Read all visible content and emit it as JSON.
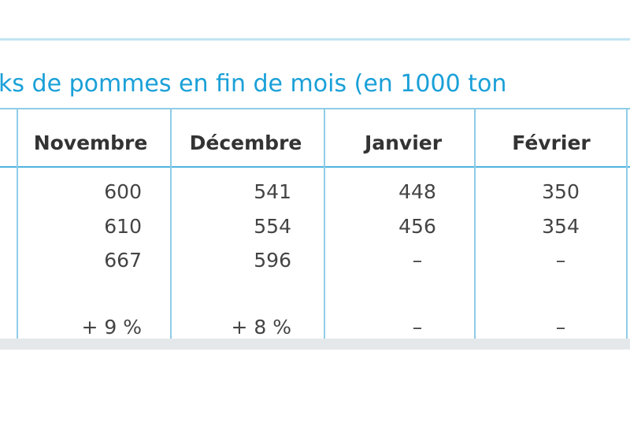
{
  "title": "ks de pommes en fin de mois (en 1000 ton",
  "table": {
    "columns": [
      "Novembre",
      "Décembre",
      "Janvier",
      "Février"
    ],
    "rows": [
      [
        "600",
        "541",
        "448",
        "350"
      ],
      [
        "610",
        "554",
        "456",
        "354"
      ],
      [
        "667",
        "596",
        "–",
        "–"
      ],
      [
        "+ 9 %",
        "+ 8 %",
        "–",
        "–"
      ]
    ]
  }
}
